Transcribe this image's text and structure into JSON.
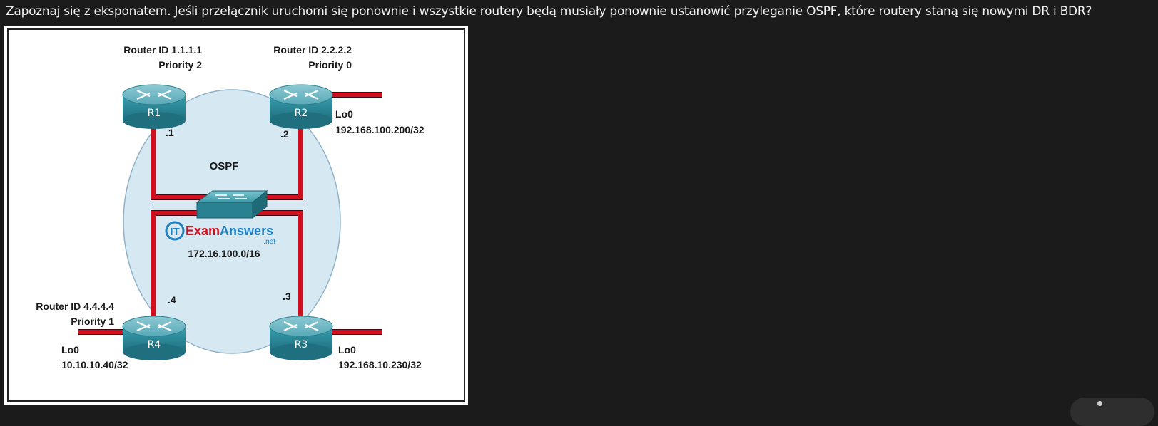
{
  "question": {
    "text": "Zapoznaj się z eksponatem. Jeśli przełącznik uruchomi się ponownie i wszystkie routery będą musiały ponownie ustanowić przyleganie OSPF, które routery staną się nowymi DR i BDR?"
  },
  "exhibit": {
    "ospf_label": "OSPF",
    "network": "172.16.100.0/16",
    "watermark": {
      "it": "IT",
      "brand": "ExamAnswers",
      "suffix": ".net"
    },
    "routers": {
      "r1": {
        "name": "R1",
        "router_id": "Router ID 1.1.1.1",
        "priority": "Priority 2",
        "ip_suffix": ".1"
      },
      "r2": {
        "name": "R2",
        "router_id": "Router ID 2.2.2.2",
        "priority": "Priority 0",
        "ip_suffix": ".2",
        "loopback_name": "Lo0",
        "loopback_ip": "192.168.100.200/32"
      },
      "r3": {
        "name": "R3",
        "ip_suffix": ".3",
        "loopback_name": "Lo0",
        "loopback_ip": "192.168.10.230/32"
      },
      "r4": {
        "name": "R4",
        "router_id": "Router ID 4.4.4.4",
        "priority": "Priority 1",
        "ip_suffix": ".4",
        "loopback_name": "Lo0",
        "loopback_ip": "10.10.10.40/32"
      }
    },
    "colors": {
      "link": "#c8102e",
      "cloud": "#d6e8f2",
      "router_top": "#6fb7c5",
      "router_body": "#2f8c9c",
      "switch": "#3aa0ad"
    }
  }
}
